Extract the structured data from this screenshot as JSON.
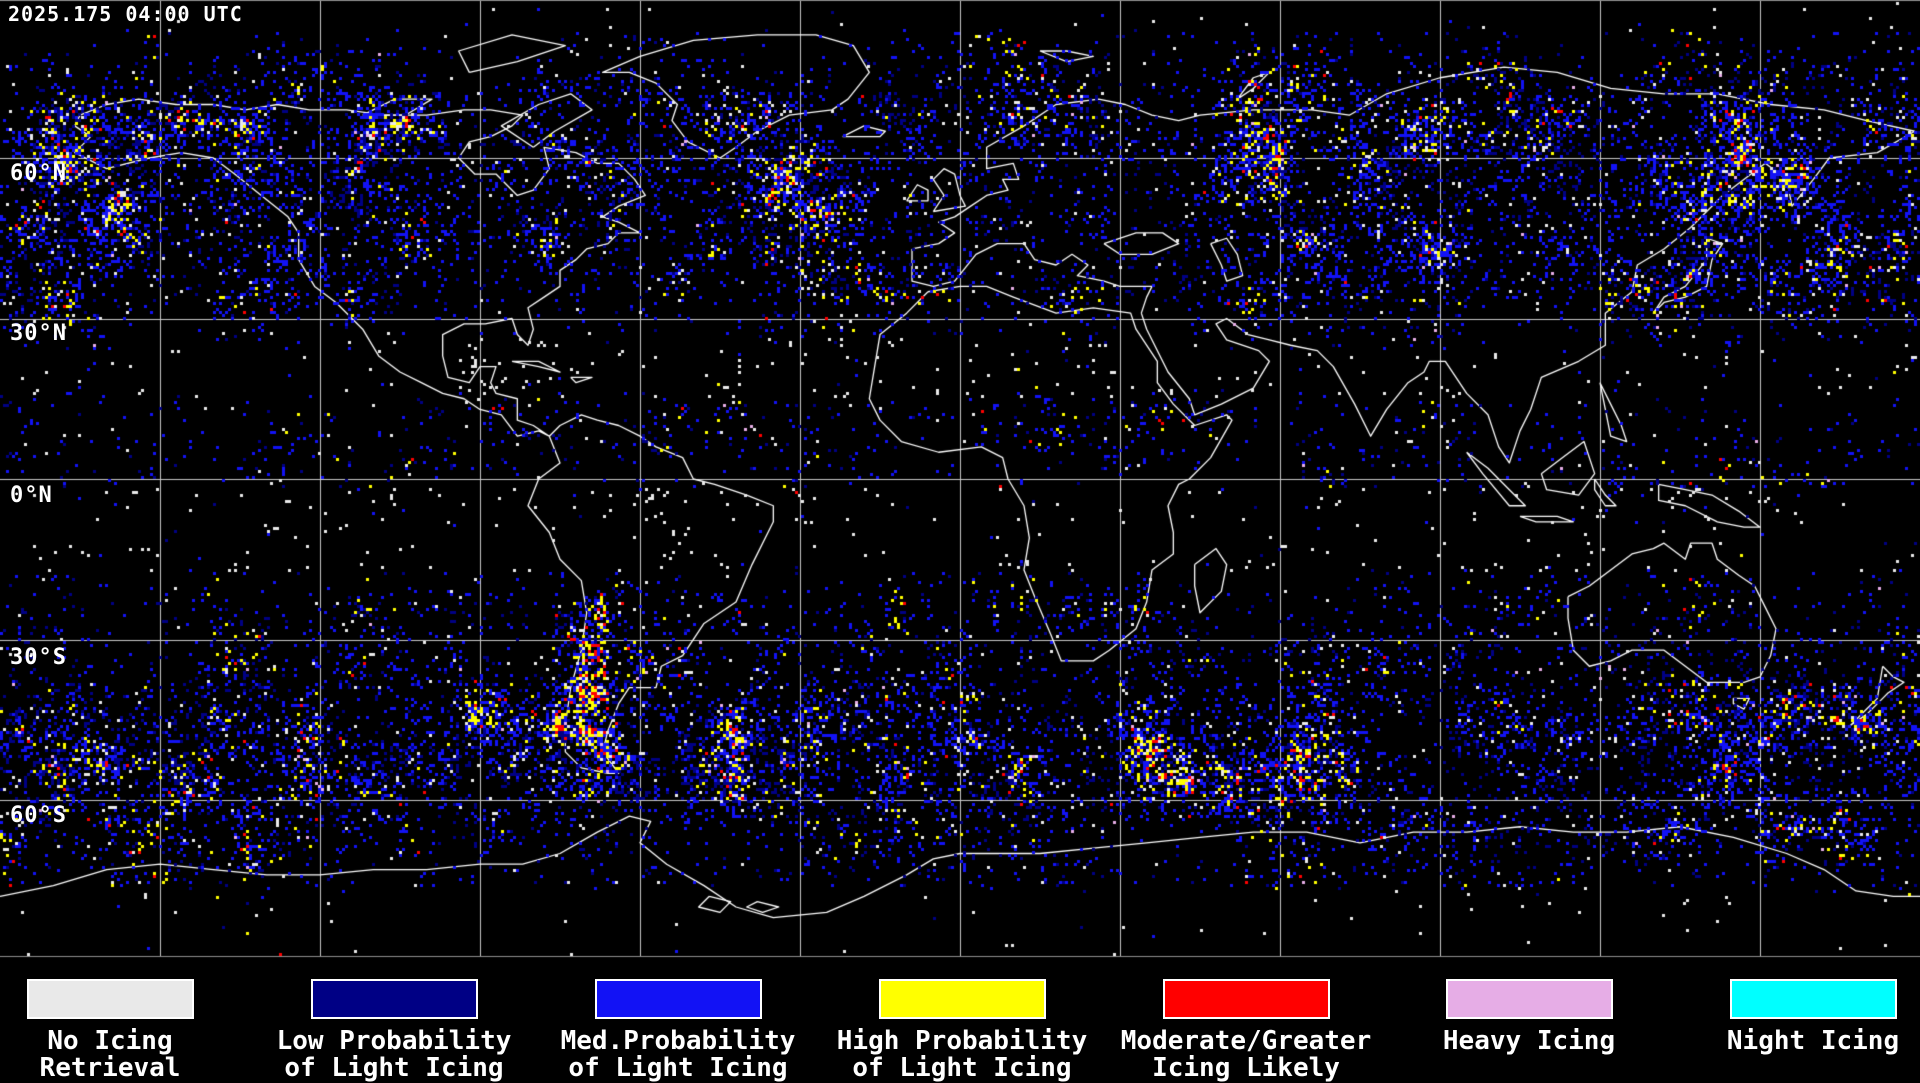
{
  "header": {
    "timestamp": "2025.175 04:00 UTC"
  },
  "map": {
    "background_color": "#000000",
    "coastline_color": "#ffffff",
    "grid": {
      "lon_step_deg": 30,
      "lat_step_deg": 30,
      "line_color": "#c9c9c9",
      "edge_color": "#8f8f8f"
    },
    "latitude_labels": [
      {
        "text": "60°N"
      },
      {
        "text": "30°N"
      },
      {
        "text": "0°N"
      },
      {
        "text": "30°S"
      },
      {
        "text": "60°S"
      }
    ],
    "data_palette": {
      "no_icing_retrieval": "#e9e9e9",
      "low_prob_light_icing": "#000085",
      "med_prob_light_icing": "#1212f5",
      "high_prob_light_icing": "#ffff00",
      "moderate_greater_icing": "#ff0000",
      "heavy_icing": "#e6ade6",
      "night_icing": "#00ffff"
    }
  },
  "legend": {
    "items": [
      {
        "label_line1": "No Icing",
        "label_line2": "Retrieval",
        "color": "#e9e9e9"
      },
      {
        "label_line1": "Low Probability",
        "label_line2": "of Light Icing",
        "color": "#000085"
      },
      {
        "label_line1": "Med.Probability",
        "label_line2": "of Light Icing",
        "color": "#1212f5"
      },
      {
        "label_line1": "High Probability",
        "label_line2": "of Light Icing",
        "color": "#ffff00"
      },
      {
        "label_line1": "Moderate/Greater",
        "label_line2": "Icing Likely",
        "color": "#ff0000"
      },
      {
        "label_line1": "Heavy Icing",
        "label_line2": "",
        "color": "#e6ade6"
      },
      {
        "label_line1": "Night Icing",
        "label_line2": "",
        "color": "#00ffff"
      }
    ]
  }
}
